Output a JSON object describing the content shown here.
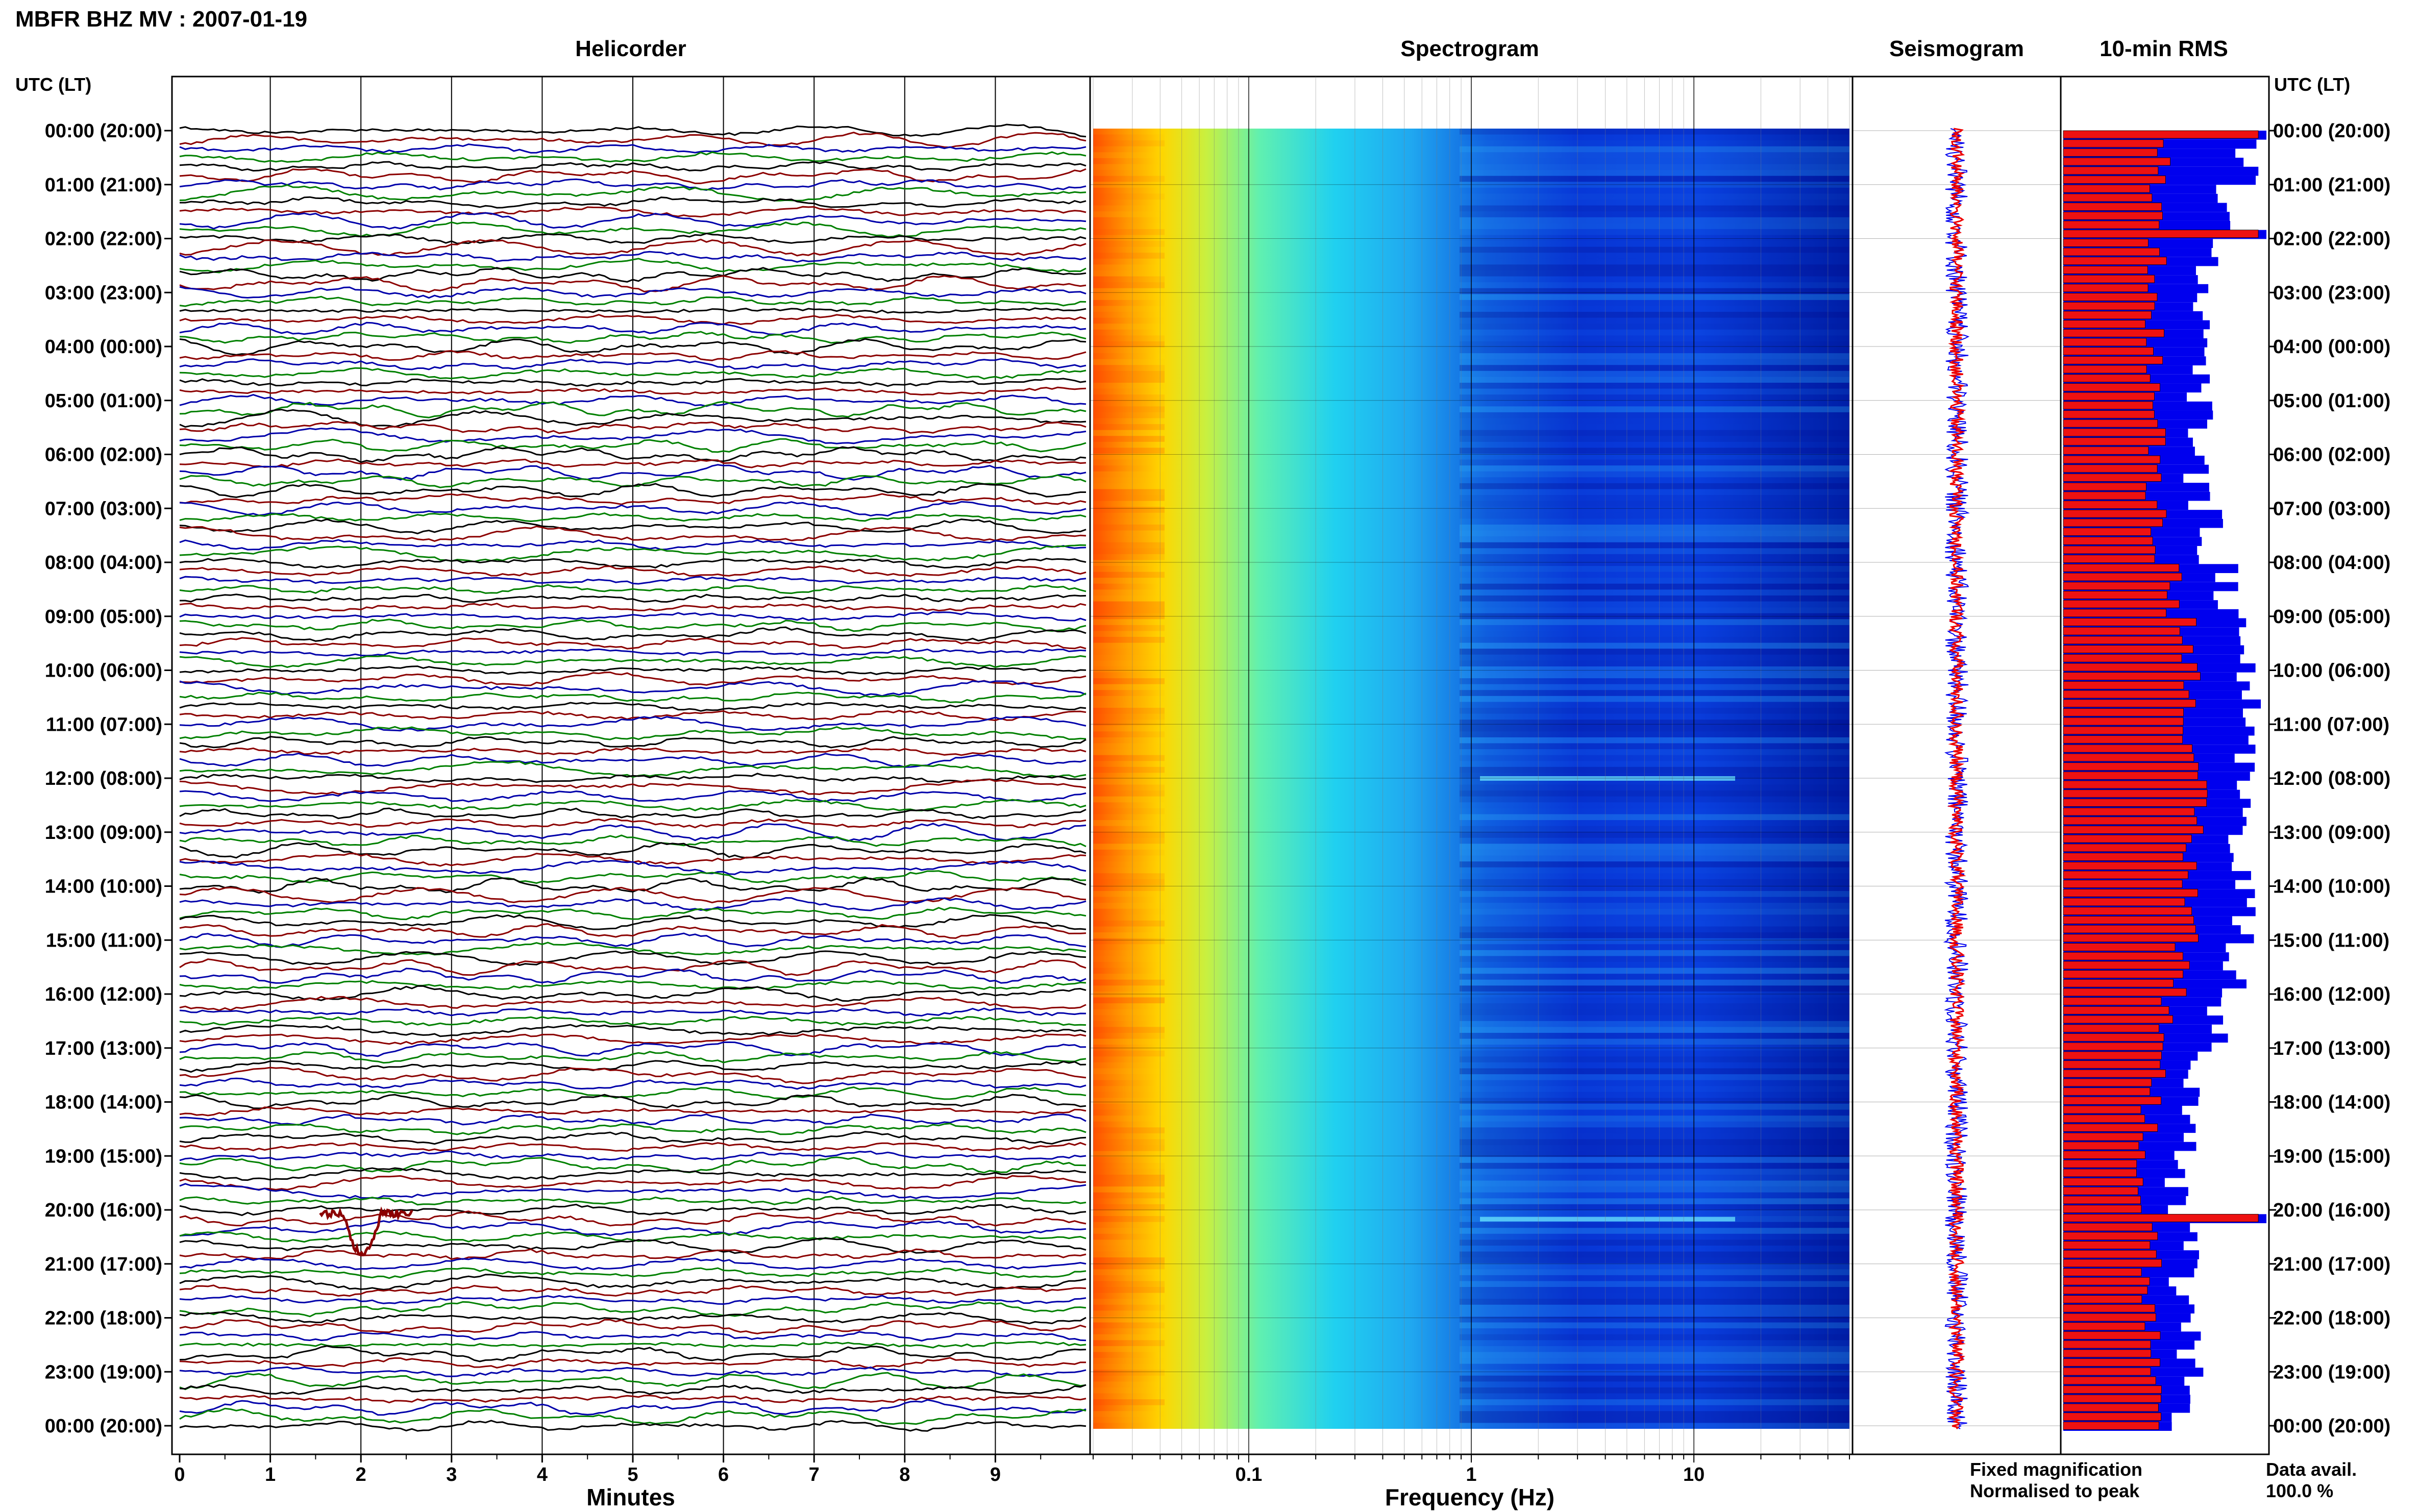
{
  "header": {
    "station_title": "MBFR BHZ MV : 2007-01-19"
  },
  "panels": {
    "helicorder_title": "Helicorder",
    "spectrogram_title": "Spectrogram",
    "seismogram_title": "Seismogram",
    "rms_title": "10-min RMS"
  },
  "axes": {
    "left_time_label": "UTC (LT)",
    "right_time_label": "UTC (LT)",
    "helicorder_xlabel": "Minutes",
    "spectrogram_xlabel": "Frequency (Hz)",
    "hour_labels": [
      "00:00 (20:00)",
      "01:00 (21:00)",
      "02:00 (22:00)",
      "03:00 (23:00)",
      "04:00 (00:00)",
      "05:00 (01:00)",
      "06:00 (02:00)",
      "07:00 (03:00)",
      "08:00 (04:00)",
      "09:00 (05:00)",
      "10:00 (06:00)",
      "11:00 (07:00)",
      "12:00 (08:00)",
      "13:00 (09:00)",
      "14:00 (10:00)",
      "15:00 (11:00)",
      "16:00 (12:00)",
      "17:00 (13:00)",
      "18:00 (14:00)",
      "19:00 (15:00)",
      "20:00 (16:00)",
      "21:00 (17:00)",
      "22:00 (18:00)",
      "23:00 (19:00)",
      "00:00 (20:00)"
    ],
    "minute_ticks": [
      "0",
      "1",
      "2",
      "3",
      "4",
      "5",
      "6",
      "7",
      "8",
      "9"
    ],
    "frequency_ticks": [
      "0.1",
      "1",
      "10"
    ]
  },
  "legend": {
    "fixed_label": "Fixed magnification",
    "fixed_color": "#0000ee",
    "normalised_label": "Normalised to peak",
    "normalised_color": "#ee0000",
    "data_avail_label": "Data avail.",
    "data_avail_value": "100.0 %"
  },
  "chart_data": [
    {
      "type": "line",
      "name": "helicorder",
      "title": "Helicorder",
      "xlabel": "Minutes",
      "xlim": [
        0,
        10
      ],
      "rows": 144,
      "row_duration_minutes": 10,
      "trace_colors": [
        "#000000",
        "#8b0000",
        "#0000aa",
        "#008000"
      ],
      "note_events": [
        {
          "time_utc": "20:02",
          "description": "large deflection"
        }
      ]
    },
    {
      "type": "heatmap",
      "name": "spectrogram",
      "title": "Spectrogram",
      "xlabel": "Frequency (Hz)",
      "x_scale": "log",
      "xlim": [
        0.02,
        50
      ],
      "y": "time UTC 00:00 to 24:00",
      "colormap": "jet",
      "bright_bands_utc": [
        "12:00",
        "20:10"
      ]
    },
    {
      "type": "line",
      "name": "seismogram",
      "title": "Seismogram",
      "series": [
        {
          "color": "#0000ee"
        },
        {
          "color": "#ee0000"
        }
      ]
    },
    {
      "type": "bar",
      "name": "rms",
      "title": "10-min RMS",
      "orientation": "horizontal",
      "bins": 144,
      "blue_hourly_mean": [
        0.9,
        0.78,
        0.7,
        0.68,
        0.66,
        0.68,
        0.66,
        0.72,
        0.8,
        0.9,
        0.92,
        0.88,
        0.92,
        0.86,
        0.9,
        0.85,
        0.75,
        0.66,
        0.6,
        0.55,
        0.6,
        0.58,
        0.62,
        0.6
      ],
      "red_hourly_mean": [
        0.48,
        0.46,
        0.46,
        0.45,
        0.45,
        0.46,
        0.45,
        0.48,
        0.55,
        0.62,
        0.64,
        0.62,
        0.66,
        0.62,
        0.64,
        0.58,
        0.52,
        0.46,
        0.42,
        0.4,
        0.45,
        0.42,
        0.44,
        0.44
      ],
      "peak_bins_utc": [
        "00:00",
        "01:50",
        "20:00"
      ]
    }
  ]
}
